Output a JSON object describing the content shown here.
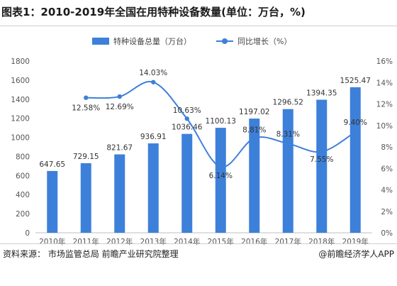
{
  "title": "图表1：2010-2019年全国在用特种设备数量(单位：万台，%)",
  "source": "资料来源：  市场监管总局 前瞻产业研究院整理",
  "brand": "@前瞻经济学人APP",
  "chart_data": {
    "type": "bar",
    "categories": [
      "2010年",
      "2011年",
      "2012年",
      "2013年",
      "2014年",
      "2015年",
      "2016年",
      "2017年",
      "2018年",
      "2019年"
    ],
    "series": [
      {
        "name": "特种设备总量（万台）",
        "type": "bar",
        "axis": "left",
        "values": [
          647.65,
          729.15,
          821.67,
          936.91,
          1036.46,
          1100.13,
          1197.02,
          1296.52,
          1394.35,
          1525.47
        ],
        "labels": [
          "647.65",
          "729.15",
          "821.67",
          "936.91",
          "1036.46",
          "1100.13",
          "1197.02",
          "1296.52",
          "1394.35",
          "1525.47"
        ]
      },
      {
        "name": "同比增长（%）",
        "type": "line",
        "axis": "right",
        "smooth": true,
        "values": [
          null,
          12.58,
          12.69,
          14.03,
          10.63,
          6.14,
          8.81,
          8.31,
          7.55,
          9.4
        ],
        "labels": [
          "",
          "12.58%",
          "12.69%",
          "14.03%",
          "10.63%",
          "6.14%",
          "8.81%",
          "8.31%",
          "7.55%",
          "9.40%"
        ]
      }
    ],
    "y_left": {
      "min": 0,
      "max": 1800,
      "ticks": [
        "0",
        "200",
        "400",
        "600",
        "800",
        "1000",
        "1200",
        "1400",
        "1600",
        "1800"
      ]
    },
    "y_right": {
      "min": 0,
      "max": 16,
      "ticks": [
        "0%",
        "2%",
        "4%",
        "6%",
        "8%",
        "10%",
        "12%",
        "14%",
        "16%"
      ]
    },
    "grid": false,
    "legend": "top",
    "colors": {
      "bar": "#3d80d9",
      "line": "#3d80d9"
    }
  }
}
